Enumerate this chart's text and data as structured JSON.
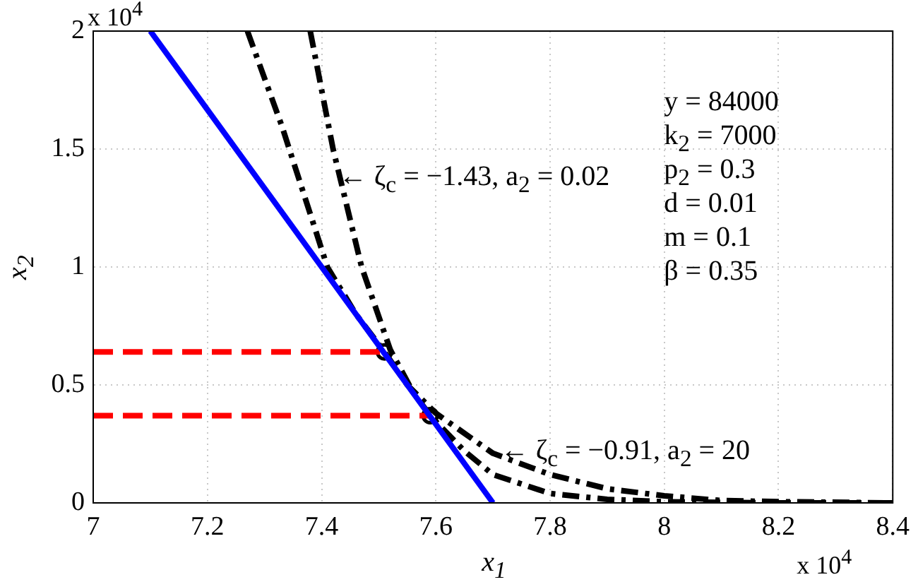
{
  "chart_data": {
    "type": "line",
    "xlabel": "x$_{1}$",
    "ylabel": "x$_{2}$",
    "xlim": [
      7,
      8.4
    ],
    "xticks": [
      7,
      7.2,
      7.4,
      7.6,
      7.8,
      8,
      8.2,
      8.4
    ],
    "ylim": [
      0,
      2
    ],
    "yticks": [
      0,
      0.5,
      1,
      1.5,
      2
    ],
    "grid": true,
    "legend": false,
    "series": [
      {
        "color": "#0000ff",
        "line_style": "solid",
        "x": [
          7.1,
          7.7
        ],
        "values": [
          2,
          0
        ]
      },
      {
        "color": "#000000",
        "line_style": "dashdot",
        "x": [
          7.27,
          7.33,
          7.41,
          7.46,
          7.51,
          7.55,
          7.6,
          7.7,
          7.8,
          7.9,
          8.0,
          8.1,
          8.2,
          8.4
        ],
        "values": [
          2,
          1.6,
          1.0,
          0.8,
          0.64,
          0.5,
          0.38,
          0.21,
          0.12,
          0.06,
          0.03,
          0.01,
          0.005,
          0
        ]
      },
      {
        "color": "#000000",
        "line_style": "dashdot",
        "x": [
          7.38,
          7.42,
          7.47,
          7.52,
          7.56,
          7.59,
          7.65,
          7.7,
          7.8,
          7.9,
          8.0,
          8.2,
          8.4
        ],
        "values": [
          2,
          1.5,
          1.0,
          0.65,
          0.47,
          0.37,
          0.22,
          0.12,
          0.04,
          0.015,
          0.005,
          0,
          0
        ]
      },
      {
        "color": "#ff0000",
        "line_style": "dashed",
        "x": [
          7,
          7.51
        ],
        "values": [
          0.64,
          0.64
        ]
      },
      {
        "color": "#ff0000",
        "line_style": "dashed",
        "x": [
          7,
          7.59
        ],
        "values": [
          0.37,
          0.37
        ]
      },
      {
        "type": "scatter",
        "color": "#000000",
        "marker": "circle",
        "x": [
          7.51,
          7.59
        ],
        "values": [
          0.64,
          0.37
        ]
      }
    ],
    "annotations": [
      "x 10$^{4}$",
      "x 10$^{4}$",
      {
        "text": "← ζ$_{c}$ = −1.43, a$_{2}$ = 0.02",
        "x": 7.43,
        "y": 1.38
      },
      {
        "text": "← ζ$_{c}$ = −0.91, a$_{2}$ = 20",
        "x": 7.713,
        "y": 0.214
      },
      "y = 84000",
      "k$_{2}$ = 7000",
      "p$_{2}$ = 0.3",
      "d = 0.01",
      "m = 0.1",
      "β = 0.35"
    ]
  }
}
